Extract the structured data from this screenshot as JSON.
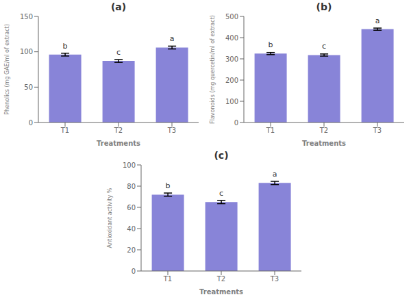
{
  "chart_data": [
    {
      "type": "bar",
      "title": "(a)",
      "categories": [
        "T1",
        "T2",
        "T3"
      ],
      "values": [
        96,
        87,
        106
      ],
      "errors": [
        2.0,
        2.0,
        2.0
      ],
      "annotations": [
        "b",
        "c",
        "a"
      ],
      "ylabel": "Phenolics (mg GAE/ml of extract)",
      "xlabel": "Treatments",
      "ylim": [
        0,
        150
      ],
      "yticks": [
        0,
        50,
        100,
        150
      ],
      "color": "#8884d8",
      "grid": false
    },
    {
      "type": "bar",
      "title": "(b)",
      "categories": [
        "T1",
        "T2",
        "T3"
      ],
      "values": [
        325,
        318,
        440
      ],
      "errors": [
        5.0,
        5.0,
        5.0
      ],
      "annotations": [
        "b",
        "c",
        "a"
      ],
      "ylabel": "Flavonoids (mg quercetin/ml of extract)",
      "xlabel": "Treatments",
      "ylim": [
        0,
        500
      ],
      "yticks": [
        0,
        100,
        200,
        300,
        400,
        500
      ],
      "color": "#8884d8",
      "grid": false
    },
    {
      "type": "bar",
      "title": "(c)",
      "categories": [
        "T1",
        "T2",
        "T3"
      ],
      "values": [
        72,
        65,
        83
      ],
      "errors": [
        1.5,
        1.5,
        1.5
      ],
      "annotations": [
        "b",
        "c",
        "a"
      ],
      "ylabel": "Antioxidant activity %",
      "xlabel": "Treatments",
      "ylim": [
        0,
        100
      ],
      "yticks": [
        0,
        20,
        40,
        60,
        80,
        100
      ],
      "color": "#8884d8",
      "grid": false
    }
  ]
}
